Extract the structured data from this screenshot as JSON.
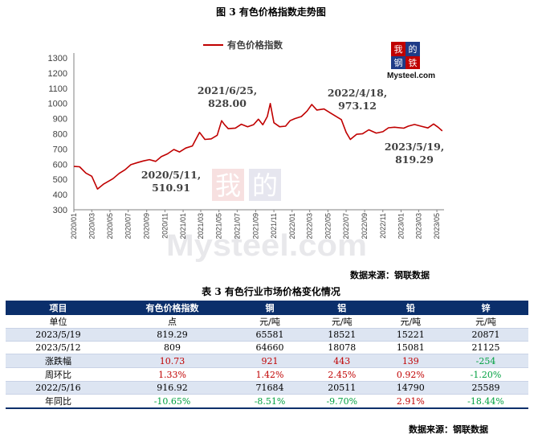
{
  "figure": {
    "title": "图 3  有色价格指数走势图",
    "source": "数据来源：钢联数据",
    "watermark_text": "Mysteel.com",
    "logo_text": "Mysteel.com",
    "logo_chars": "我的钢铁"
  },
  "chart_data": {
    "type": "line",
    "title": "",
    "legend": "top-center",
    "ylim": [
      300,
      1300
    ],
    "yticks": [
      300,
      400,
      500,
      600,
      700,
      800,
      900,
      1000,
      1100,
      1200,
      1300
    ],
    "xticks": [
      "2020/01",
      "2020/03",
      "2020/05",
      "2020/07",
      "2020/09",
      "2020/11",
      "2021/01",
      "2021/03",
      "2021/05",
      "2021/07",
      "2021/09",
      "2021/11",
      "2022/01",
      "2022/03",
      "2022/05",
      "2022/07",
      "2022/09",
      "2022/11",
      "2023/01",
      "2023/03",
      "2023/05"
    ],
    "series": [
      {
        "name": "有色价格指数",
        "color": "#c00000",
        "points": [
          [
            "2020-01-01",
            585
          ],
          [
            "2020-01-20",
            580
          ],
          [
            "2020-02-10",
            545
          ],
          [
            "2020-03-01",
            530
          ],
          [
            "2020-03-20",
            430
          ],
          [
            "2020-04-10",
            470
          ],
          [
            "2020-05-11",
            510.91
          ],
          [
            "2020-06-01",
            530
          ],
          [
            "2020-06-20",
            560
          ],
          [
            "2020-07-10",
            600
          ],
          [
            "2020-08-01",
            620
          ],
          [
            "2020-08-20",
            615
          ],
          [
            "2020-09-10",
            630
          ],
          [
            "2020-10-01",
            625
          ],
          [
            "2020-10-20",
            640
          ],
          [
            "2020-11-10",
            665
          ],
          [
            "2020-12-01",
            700
          ],
          [
            "2020-12-20",
            690
          ],
          [
            "2021-01-10",
            700
          ],
          [
            "2021-02-01",
            720
          ],
          [
            "2021-02-10",
            760
          ],
          [
            "2021-02-25",
            800
          ],
          [
            "2021-03-15",
            760
          ],
          [
            "2021-04-05",
            770
          ],
          [
            "2021-04-25",
            800
          ],
          [
            "2021-05-10",
            880
          ],
          [
            "2021-05-20",
            860
          ],
          [
            "2021-06-01",
            840
          ],
          [
            "2021-06-25",
            828.0
          ],
          [
            "2021-07-15",
            860
          ],
          [
            "2021-08-05",
            850
          ],
          [
            "2021-08-25",
            870
          ],
          [
            "2021-09-10",
            890
          ],
          [
            "2021-09-25",
            860
          ],
          [
            "2021-10-10",
            920
          ],
          [
            "2021-10-20",
            990
          ],
          [
            "2021-11-01",
            870
          ],
          [
            "2021-11-20",
            850
          ],
          [
            "2021-12-10",
            860
          ],
          [
            "2021-12-25",
            880
          ],
          [
            "2022-01-10",
            900
          ],
          [
            "2022-02-01",
            920
          ],
          [
            "2022-02-20",
            940
          ],
          [
            "2022-03-08",
            990
          ],
          [
            "2022-03-25",
            960
          ],
          [
            "2022-04-18",
            973.12
          ],
          [
            "2022-05-10",
            930
          ],
          [
            "2022-06-01",
            910
          ],
          [
            "2022-06-15",
            900
          ],
          [
            "2022-07-01",
            800
          ],
          [
            "2022-07-15",
            760
          ],
          [
            "2022-08-05",
            800
          ],
          [
            "2022-08-25",
            810
          ],
          [
            "2022-09-15",
            820
          ],
          [
            "2022-10-10",
            805
          ],
          [
            "2022-11-01",
            820
          ],
          [
            "2022-11-20",
            830
          ],
          [
            "2022-12-10",
            840
          ],
          [
            "2023-01-10",
            840
          ],
          [
            "2023-01-25",
            860
          ],
          [
            "2023-02-15",
            855
          ],
          [
            "2023-03-10",
            850
          ],
          [
            "2023-04-01",
            845
          ],
          [
            "2023-04-20",
            855
          ],
          [
            "2023-05-05",
            840
          ],
          [
            "2023-05-19",
            819.29
          ]
        ]
      }
    ],
    "annotations": [
      {
        "date": "2021/6/25,",
        "value": "828.00",
        "x": "2021-06-25",
        "y": 828.0
      },
      {
        "date": "2020/5/11,",
        "value": "510.91",
        "x": "2020-05-11",
        "y": 510.91
      },
      {
        "date": "2022/4/18,",
        "value": "973.12",
        "x": "2022-04-18",
        "y": 973.12
      },
      {
        "date": "2023/5/19,",
        "value": "819.29",
        "x": "2023-05-19",
        "y": 819.29
      }
    ]
  },
  "table": {
    "title": "表 3 有色行业市场价格变化情况",
    "source": "数据来源：钢联数据",
    "headers": [
      "项目",
      "有色价格指数",
      "铜",
      "铝",
      "铅",
      "锌"
    ],
    "rows": [
      {
        "cells": [
          "单位",
          "点",
          "元/吨",
          "元/吨",
          "元/吨",
          "元/吨"
        ],
        "tone": [
          "",
          "",
          "",
          "",
          "",
          ""
        ]
      },
      {
        "cells": [
          "2023/5/19",
          "819.29",
          "65581",
          "18521",
          "15221",
          "20871"
        ],
        "tone": [
          "",
          "",
          "",
          "",
          "",
          ""
        ]
      },
      {
        "cells": [
          "2023/5/12",
          "809",
          "64660",
          "18078",
          "15081",
          "21125"
        ],
        "tone": [
          "",
          "",
          "",
          "",
          "",
          ""
        ]
      },
      {
        "cells": [
          "涨跌幅",
          "10.73",
          "921",
          "443",
          "139",
          "-254"
        ],
        "tone": [
          "",
          "up",
          "up",
          "up",
          "up",
          "down"
        ]
      },
      {
        "cells": [
          "周环比",
          "1.33%",
          "1.42%",
          "2.45%",
          "0.92%",
          "-1.20%"
        ],
        "tone": [
          "",
          "up",
          "up",
          "up",
          "up",
          "down"
        ]
      },
      {
        "cells": [
          "2022/5/16",
          "916.92",
          "71684",
          "20511",
          "14790",
          "25589"
        ],
        "tone": [
          "",
          "",
          "",
          "",
          "",
          ""
        ]
      },
      {
        "cells": [
          "年同比",
          "-10.65%",
          "-8.51%",
          "-9.70%",
          "2.91%",
          "-18.44%"
        ],
        "tone": [
          "",
          "down",
          "down",
          "down",
          "up",
          "down"
        ]
      }
    ]
  }
}
